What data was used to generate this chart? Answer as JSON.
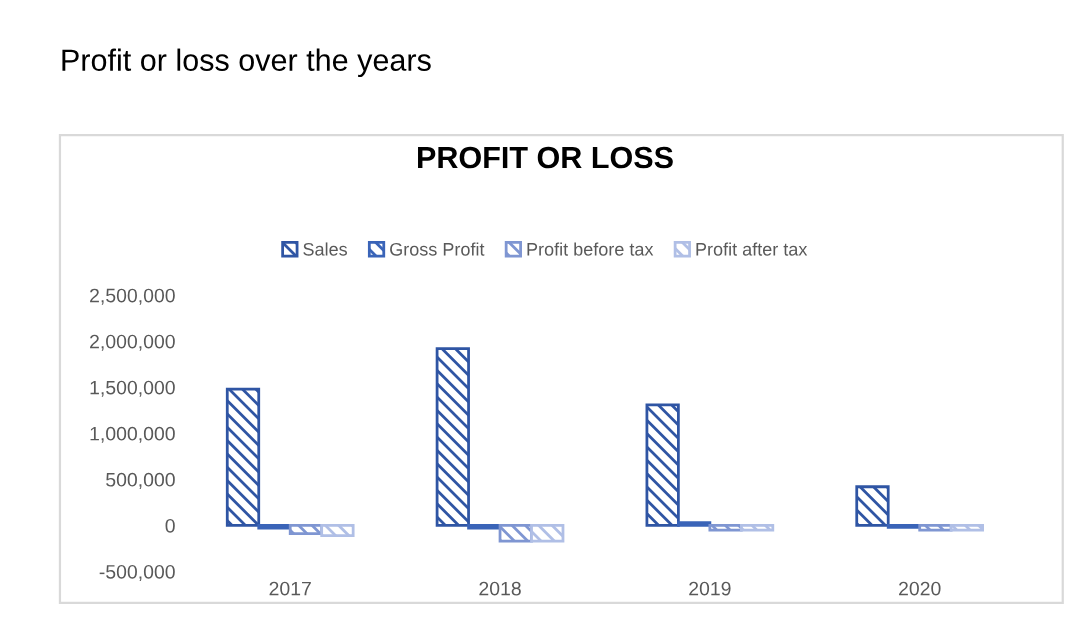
{
  "chart_data": {
    "type": "bar",
    "title": "Profit or loss over the years",
    "subtitle": "PROFIT OR LOSS",
    "categories": [
      "2017",
      "2018",
      "2019",
      "2020"
    ],
    "series": [
      {
        "name": "Sales",
        "color": "#2f55a4",
        "values": [
          1480000,
          1920000,
          1310000,
          420000
        ]
      },
      {
        "name": "Gross Profit",
        "color": "#3a64b8",
        "values": [
          -30000,
          -30000,
          30000,
          -20000
        ]
      },
      {
        "name": "Profit before tax",
        "color": "#7f96d2",
        "values": [
          -90000,
          -170000,
          -50000,
          -50000
        ]
      },
      {
        "name": "Profit after tax",
        "color": "#b0bfe6",
        "values": [
          -110000,
          -170000,
          -50000,
          -50000
        ]
      }
    ],
    "ylim": [
      -500000,
      2500000
    ],
    "yticks": [
      {
        "value": -500000,
        "label": "-500,000"
      },
      {
        "value": 0,
        "label": "0"
      },
      {
        "value": 500000,
        "label": "500,000"
      },
      {
        "value": 1000000,
        "label": "1,000,000"
      },
      {
        "value": 1500000,
        "label": "1,500,000"
      },
      {
        "value": 2000000,
        "label": "2,000,000"
      },
      {
        "value": 2500000,
        "label": "2,500,000"
      }
    ],
    "grid": false,
    "legend": "top"
  }
}
